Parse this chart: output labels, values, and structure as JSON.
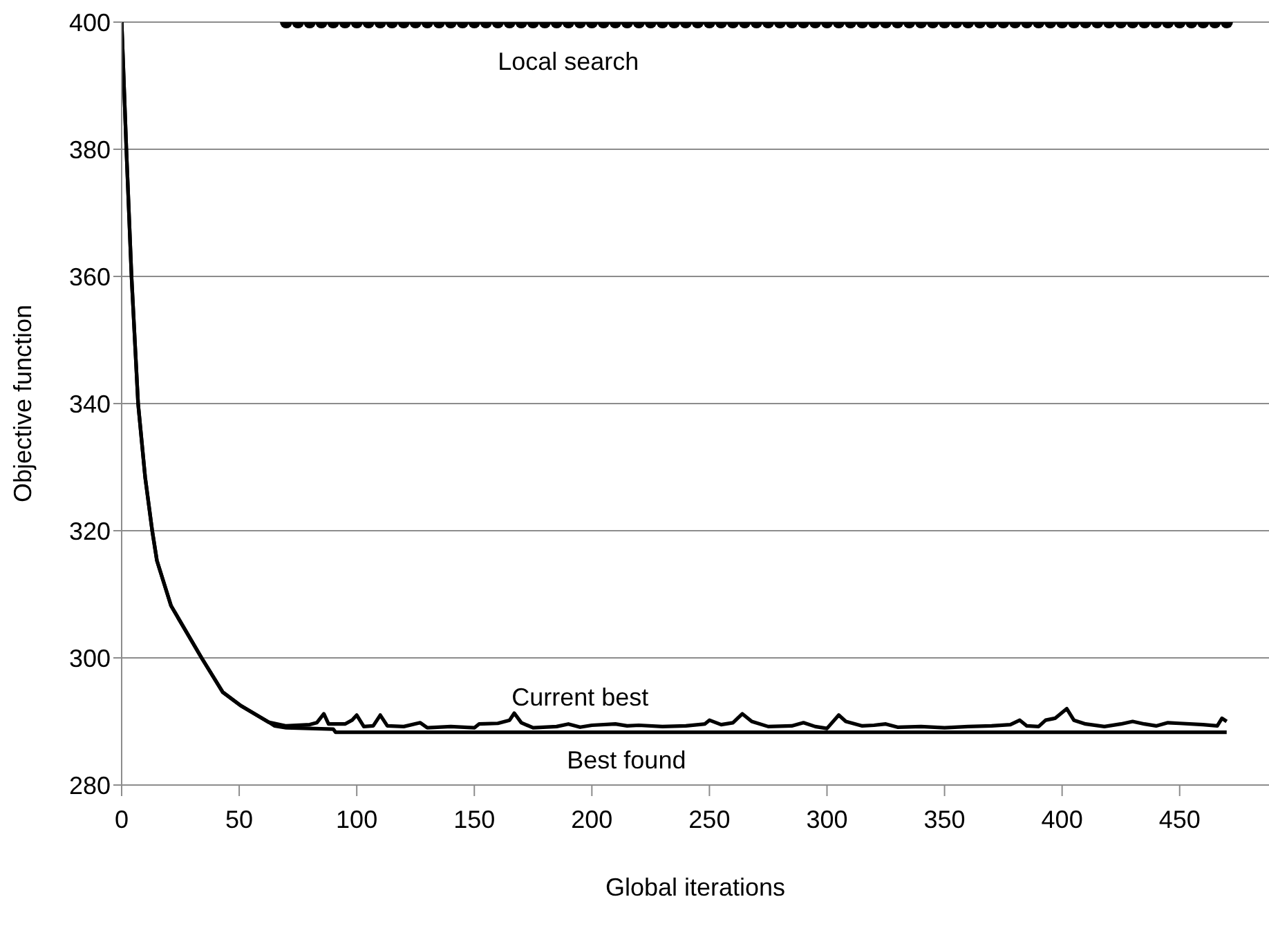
{
  "chart_data": {
    "type": "line",
    "xlabel": "Global iterations",
    "ylabel": "Objective function",
    "xlim": [
      0,
      488
    ],
    "xticks": [
      0,
      50,
      100,
      150,
      200,
      250,
      300,
      350,
      400,
      450
    ],
    "ylim": [
      280,
      400
    ],
    "yticks": [
      280,
      300,
      320,
      340,
      360,
      380,
      400
    ],
    "grid": "y",
    "series": [
      {
        "name": "Local search",
        "type": "scatter",
        "marker": "circle",
        "color": "#000000",
        "x": [
          70,
          75,
          80,
          85,
          90,
          95,
          100,
          105,
          110,
          115,
          120,
          125,
          130,
          135,
          140,
          145,
          150,
          155,
          160,
          165,
          170,
          175,
          180,
          185,
          190,
          195,
          200,
          205,
          210,
          215,
          220,
          225,
          230,
          235,
          240,
          245,
          250,
          255,
          260,
          265,
          270,
          275,
          280,
          285,
          290,
          295,
          300,
          305,
          310,
          315,
          320,
          325,
          330,
          335,
          340,
          345,
          350,
          355,
          360,
          365,
          370,
          375,
          380,
          385,
          390,
          395,
          400,
          405,
          410,
          415,
          420,
          425,
          430,
          435,
          440,
          445,
          450,
          455,
          460,
          465,
          470
        ],
        "values": [
          400,
          400,
          400,
          400,
          400,
          400,
          400,
          400,
          400,
          400,
          400,
          400,
          400,
          400,
          400,
          400,
          400,
          400,
          400,
          400,
          400,
          400,
          400,
          400,
          400,
          400,
          400,
          400,
          400,
          400,
          400,
          400,
          400,
          400,
          400,
          400,
          400,
          400,
          400,
          400,
          400,
          400,
          400,
          400,
          400,
          400,
          400,
          400,
          400,
          400,
          400,
          400,
          400,
          400,
          400,
          400,
          400,
          400,
          400,
          400,
          400,
          400,
          400,
          400,
          400,
          400,
          400,
          400,
          400,
          400,
          400,
          400,
          400,
          400,
          400,
          400,
          400,
          400,
          400,
          400,
          400
        ]
      },
      {
        "name": "Current best",
        "marker": "none",
        "color": "#000000",
        "x": [
          0,
          2,
          4.2,
          7,
          10,
          13,
          15,
          21,
          34,
          43,
          50.6,
          62.5,
          70,
          80,
          83,
          86,
          88,
          95,
          98,
          100,
          103,
          107,
          110,
          113,
          120,
          127,
          130,
          140,
          150,
          152,
          160,
          165,
          167,
          170,
          175,
          185,
          190,
          195,
          200,
          210,
          215,
          220,
          230,
          240,
          248,
          250,
          255,
          260,
          264,
          268,
          275,
          285,
          290,
          295,
          300,
          305,
          308,
          315,
          320,
          325,
          330,
          340,
          350,
          360,
          370,
          378,
          382,
          385,
          390,
          393,
          397,
          402,
          405,
          410,
          418,
          425,
          430,
          435,
          440,
          445,
          450,
          460,
          466,
          468,
          470
        ],
        "values": [
          400,
          380,
          360,
          340,
          328.4,
          320,
          315.3,
          308.2,
          300,
          294.6,
          292.5,
          289.9,
          289.3,
          289.5,
          289.8,
          291.2,
          289.6,
          289.6,
          290.2,
          291,
          289.2,
          289.3,
          291,
          289.3,
          289.2,
          289.8,
          289,
          289.2,
          289,
          289.6,
          289.7,
          290.2,
          291.3,
          289.8,
          289,
          289.2,
          289.6,
          289.1,
          289.4,
          289.6,
          289.3,
          289.4,
          289.2,
          289.3,
          289.6,
          290.2,
          289.5,
          289.8,
          291.2,
          290,
          289.2,
          289.3,
          289.8,
          289.2,
          288.9,
          291,
          290,
          289.3,
          289.4,
          289.6,
          289.1,
          289.2,
          289,
          289.2,
          289.3,
          289.5,
          290.2,
          289.3,
          289.2,
          290.2,
          290.5,
          292,
          290.2,
          289.6,
          289.2,
          289.6,
          290,
          289.6,
          289.3,
          289.8,
          289.7,
          289.5,
          289.3,
          290.5,
          290
        ]
      },
      {
        "name": "Best found",
        "marker": "none",
        "color": "#000000",
        "x": [
          0,
          2,
          4.2,
          7,
          10,
          13,
          15,
          21,
          34,
          43,
          50.6,
          62.5,
          65,
          70,
          90,
          91,
          470
        ],
        "values": [
          400,
          380,
          360,
          340,
          328.4,
          320,
          315.3,
          308.2,
          300,
          294.6,
          292.5,
          289.9,
          289.3,
          289,
          288.8,
          288.3,
          288.3
        ]
      }
    ]
  }
}
